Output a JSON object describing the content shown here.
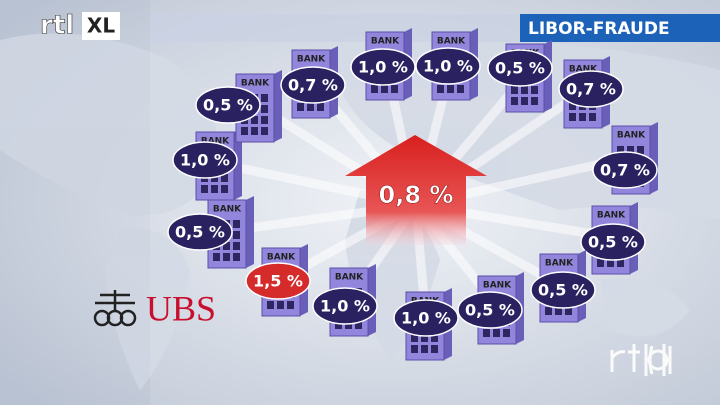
{
  "logo": {
    "left": "rtl",
    "right": "XL"
  },
  "banner": "LIBOR-FRAUDE",
  "center": {
    "label": "0,8 %"
  },
  "ubs": "UBS",
  "nodes": [
    {
      "label": "BANK",
      "rate": "1,0 %"
    },
    {
      "label": "BANK",
      "rate": "0,5 %"
    },
    {
      "label": "BANK",
      "rate": "0,5 %"
    },
    {
      "label": "BANK",
      "rate": "0,7 %"
    },
    {
      "label": "BANK",
      "rate": "1,0 %"
    },
    {
      "label": "BANK",
      "rate": "1,0 %"
    },
    {
      "label": "BANK",
      "rate": "0,5 %"
    },
    {
      "label": "BANK",
      "rate": "0,7 %"
    },
    {
      "label": "BANK",
      "rate": "0,7 %"
    },
    {
      "label": "BANK",
      "rate": "0,5 %"
    },
    {
      "label": "BANK",
      "rate": "0,5 %"
    },
    {
      "label": "BANK",
      "rate": "0,5 %"
    },
    {
      "label": "BANK",
      "rate": "1,0 %"
    },
    {
      "label": "BANK",
      "rate": "1,0 %"
    },
    {
      "label": "BANK",
      "rate": "1,5 %"
    }
  ]
}
